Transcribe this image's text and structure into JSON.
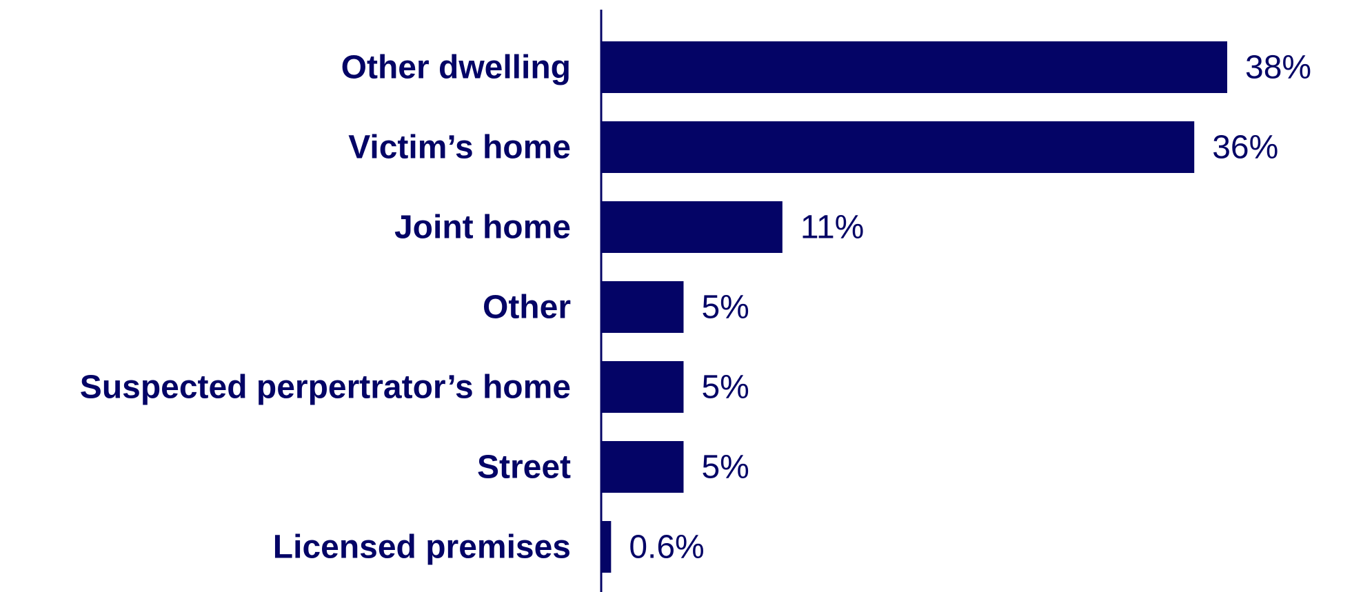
{
  "colors": {
    "bar": "#040466",
    "text": "#040466",
    "axis": "#040466",
    "background": "#ffffff"
  },
  "chart_data": {
    "type": "bar",
    "orientation": "horizontal",
    "title": "",
    "xlabel": "",
    "ylabel": "",
    "categories": [
      "Other dwelling",
      "Victim’s home",
      "Joint home",
      "Other",
      "Suspected perpertrator’s home",
      "Street",
      "Licensed premises"
    ],
    "values": [
      38,
      36,
      11,
      5,
      5,
      5,
      0.6
    ],
    "value_labels": [
      "38%",
      "36%",
      "11%",
      "5%",
      "5%",
      "5%",
      "0.6%"
    ],
    "unit": "%",
    "xlim": [
      0,
      38
    ],
    "grid": false,
    "legend": "none"
  }
}
